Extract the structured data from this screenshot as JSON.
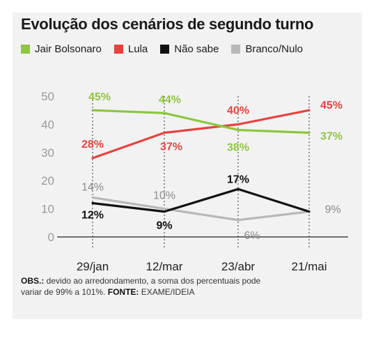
{
  "title": "Evolução dos cenários de segundo turno",
  "legend": [
    {
      "label": "Jair Bolsonaro",
      "color": "#8dc63f"
    },
    {
      "label": "Lula",
      "color": "#e8423f"
    },
    {
      "label": "Não sabe",
      "color": "#111111"
    },
    {
      "label": "Branco/Nulo",
      "color": "#b8b8b8"
    }
  ],
  "note": {
    "obs_label": "OBS.:",
    "obs_text": " devido ao arredondamento, a soma dos percentuais pode variar de 99% a 101%. ",
    "source_label": "FONTE:",
    "source_text": " EXAME/IDEIA"
  },
  "chart_data": {
    "type": "line",
    "title": "Evolução dos cenários de segundo turno",
    "xlabel": "",
    "ylabel": "",
    "categories": [
      "29/jan",
      "12/mar",
      "23/abr",
      "21/mai"
    ],
    "ylim": [
      0,
      50
    ],
    "yticks": [
      "0",
      "10",
      "20",
      "30",
      "40",
      "50"
    ],
    "grid": "dashed vertical guides at each category",
    "series": [
      {
        "name": "Jair Bolsonaro",
        "color": "#8dc63f",
        "values": [
          45,
          44,
          38,
          37
        ],
        "labels": [
          "45%",
          "44%",
          "38%",
          "37%"
        ]
      },
      {
        "name": "Lula",
        "color": "#e8423f",
        "values": [
          28,
          37,
          40,
          45
        ],
        "labels": [
          "28%",
          "37%",
          "40%",
          "45%"
        ]
      },
      {
        "name": "Não sabe",
        "color": "#111111",
        "values": [
          12,
          9,
          17,
          9
        ],
        "labels": [
          "12%",
          "9%",
          "17%",
          "9%"
        ]
      },
      {
        "name": "Branco/Nulo",
        "color": "#b8b8b8",
        "values": [
          14,
          10,
          6,
          9
        ],
        "labels": [
          "14%",
          "10%",
          "6%",
          ""
        ]
      }
    ]
  }
}
